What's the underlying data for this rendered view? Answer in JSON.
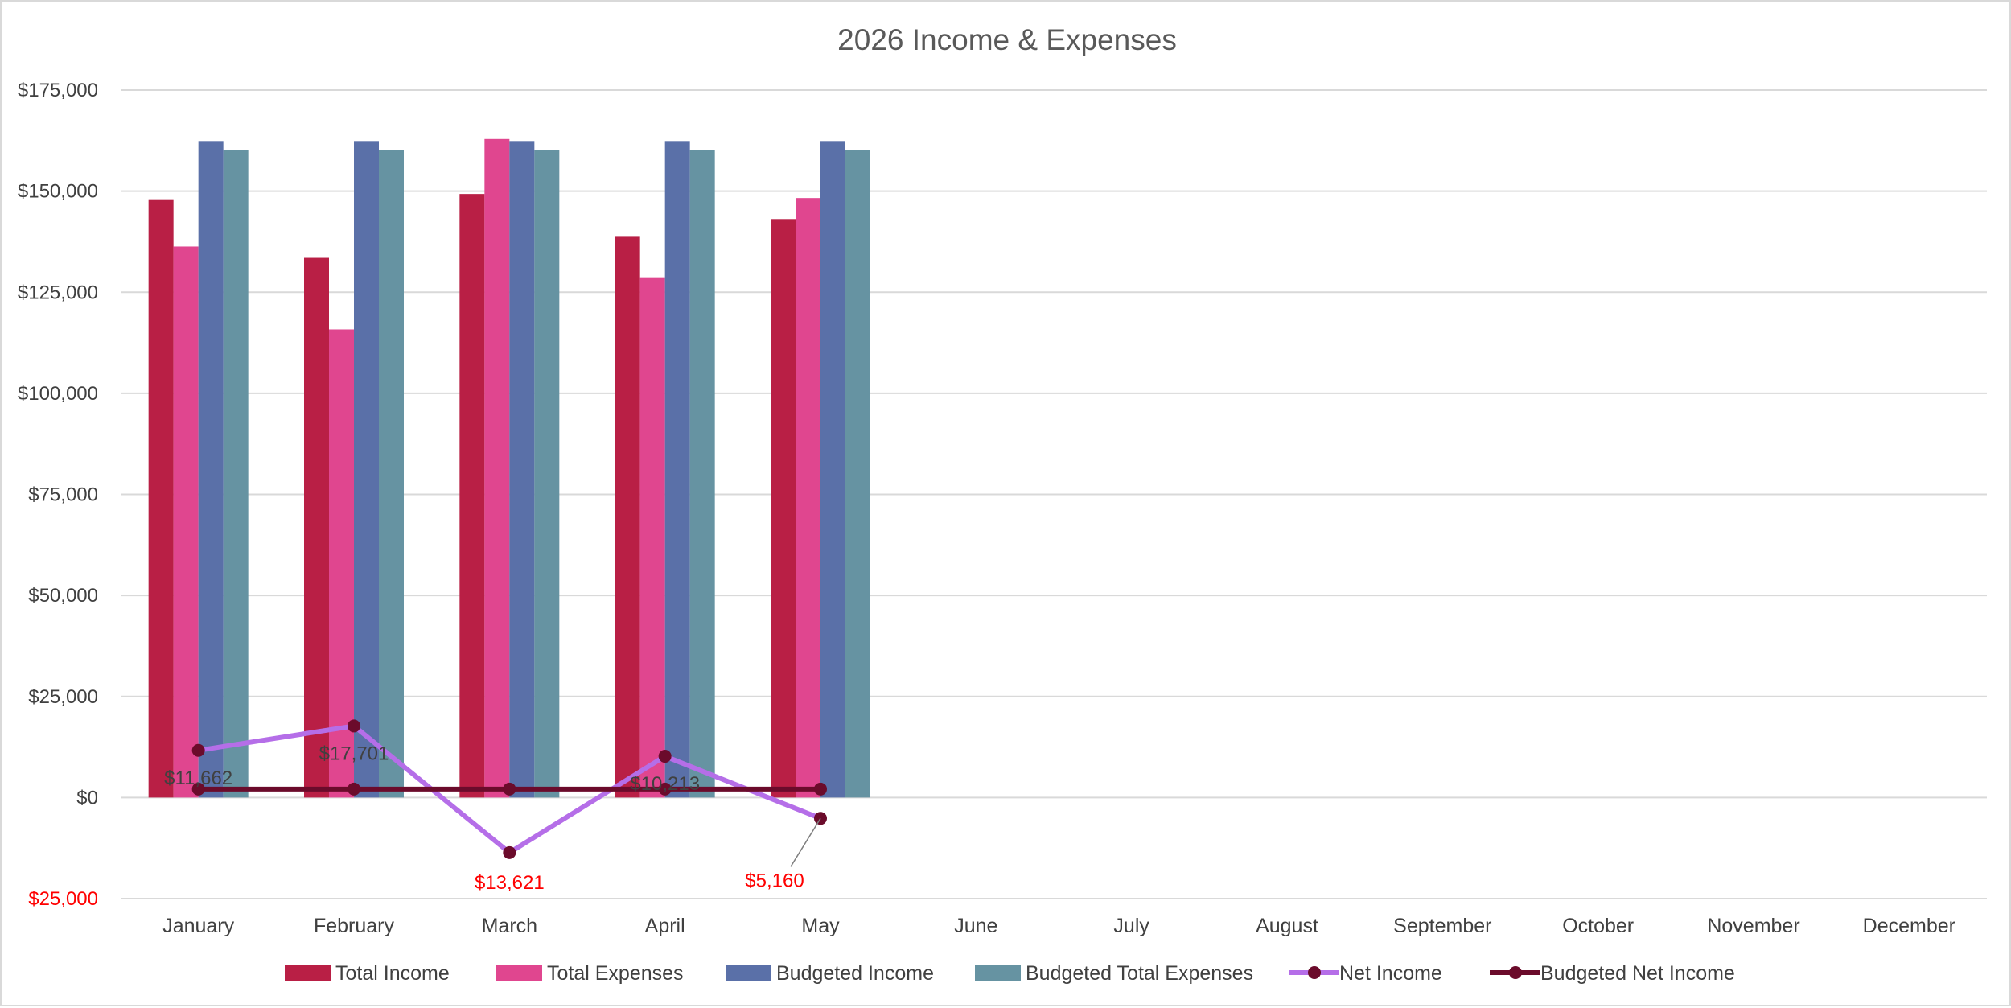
{
  "chart_data": {
    "type": "bar",
    "title": "2026 Income & Expenses",
    "categories": [
      "January",
      "February",
      "March",
      "April",
      "May",
      "June",
      "July",
      "August",
      "September",
      "October",
      "November",
      "December"
    ],
    "y_ticks": [
      {
        "value": 175000,
        "label": "$175,000"
      },
      {
        "value": 150000,
        "label": "$150,000"
      },
      {
        "value": 125000,
        "label": "$125,000"
      },
      {
        "value": 100000,
        "label": "$100,000"
      },
      {
        "value": 75000,
        "label": "$75,000"
      },
      {
        "value": 50000,
        "label": "$50,000"
      },
      {
        "value": 25000,
        "label": "$25,000"
      },
      {
        "value": 0,
        "label": "$0"
      },
      {
        "value": -25000,
        "label": "$25,000"
      }
    ],
    "ylim": [
      -25000,
      175000
    ],
    "grid": true,
    "legend_position": "bottom",
    "bar_series": [
      {
        "name": "Total Income",
        "color": "#b91f45",
        "values": [
          148000,
          133500,
          149300,
          138900,
          143100,
          null,
          null,
          null,
          null,
          null,
          null,
          null
        ]
      },
      {
        "name": "Total Expenses",
        "color": "#e0468f",
        "values": [
          136300,
          115800,
          162900,
          128700,
          148300,
          null,
          null,
          null,
          null,
          null,
          null,
          null
        ]
      },
      {
        "name": "Budgeted Income",
        "color": "#5a70a8",
        "values": [
          162400,
          162400,
          162400,
          162400,
          162400,
          null,
          null,
          null,
          null,
          null,
          null,
          null
        ]
      },
      {
        "name": "Budgeted Total Expenses",
        "color": "#6693a2",
        "values": [
          160200,
          160200,
          160200,
          160200,
          160200,
          null,
          null,
          null,
          null,
          null,
          null,
          null
        ]
      }
    ],
    "line_series": [
      {
        "name": "Net Income",
        "color": "#b56ee8",
        "marker_color": "#6b0b2b",
        "values": [
          11662,
          17701,
          -13621,
          10213,
          -5160,
          null,
          null,
          null,
          null,
          null,
          null,
          null
        ],
        "labels": [
          "$11,662",
          "$17,701",
          "$13,621",
          "$10,213",
          "$5,160"
        ]
      },
      {
        "name": "Budgeted Net Income",
        "color": "#6b0b2b",
        "marker_color": "#6b0b2b",
        "values": [
          2100,
          2100,
          2100,
          2100,
          2100,
          null,
          null,
          null,
          null,
          null,
          null,
          null
        ]
      }
    ]
  }
}
